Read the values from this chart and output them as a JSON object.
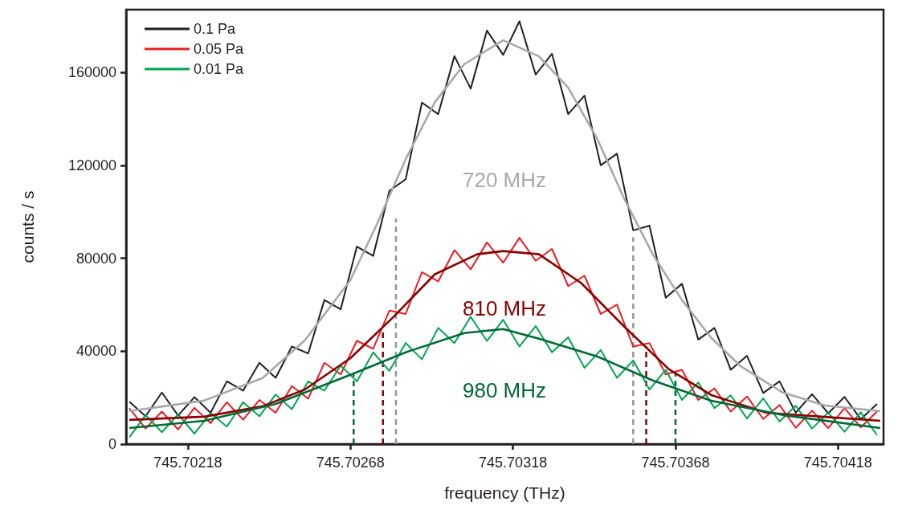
{
  "chart_data": {
    "type": "line",
    "xlabel": "frequency (THz)",
    "ylabel": "counts / s",
    "xlim": [
      745.70199,
      745.70432
    ],
    "xticks": [
      745.70218,
      745.70268,
      745.70318,
      745.70368,
      745.70418
    ],
    "ylim": [
      0,
      187000
    ],
    "yticks": [
      0,
      40000,
      80000,
      120000,
      160000
    ],
    "grid": false,
    "legend": "top left",
    "marker": "none",
    "line_style": "solid",
    "x": [
      745.702,
      745.70205,
      745.7021,
      745.70215,
      745.7022,
      745.70225,
      745.7023,
      745.70235,
      745.7024,
      745.70245,
      745.7025,
      745.70255,
      745.7026,
      745.70265,
      745.7027,
      745.70275,
      745.7028,
      745.70285,
      745.7029,
      745.70295,
      745.703,
      745.70305,
      745.7031,
      745.70315,
      745.7032,
      745.70325,
      745.7033,
      745.70335,
      745.7034,
      745.70345,
      745.7035,
      745.70355,
      745.7036,
      745.70365,
      745.7037,
      745.70375,
      745.7038,
      745.70385,
      745.7039,
      745.70395,
      745.704,
      745.70405,
      745.7041,
      745.70415,
      745.7042,
      745.70425,
      745.7043
    ],
    "series": [
      {
        "name": "0.1 Pa",
        "color": "#231f20",
        "values": [
          18200,
          12000,
          22200,
          12300,
          20200,
          13500,
          27000,
          23000,
          35000,
          28500,
          42000,
          39000,
          62000,
          58000,
          85000,
          81000,
          109000,
          114000,
          147000,
          142000,
          167000,
          153000,
          178000,
          167500,
          182000,
          159000,
          168000,
          142000,
          150000,
          120000,
          125000,
          92000,
          94000,
          63000,
          69000,
          45000,
          50000,
          32000,
          38000,
          22000,
          27000,
          13500,
          21500,
          13300,
          20300,
          10700,
          17300
        ]
      },
      {
        "name": "0.05 Pa",
        "color": "#ed1c24",
        "values": [
          15400,
          6700,
          14000,
          6300,
          15600,
          9000,
          18000,
          10500,
          19000,
          13500,
          25000,
          19500,
          35000,
          30000,
          44500,
          41000,
          57500,
          56000,
          74000,
          70000,
          83500,
          75200,
          86800,
          78100,
          88800,
          78900,
          84000,
          68000,
          72500,
          56000,
          60000,
          42000,
          43500,
          30000,
          32000,
          19000,
          24000,
          14000,
          20500,
          10800,
          16800,
          7000,
          14400,
          6900,
          15500,
          7200,
          14000
        ]
      },
      {
        "name": "0.01 Pa",
        "color": "#00a651",
        "values": [
          2900,
          12500,
          5100,
          12800,
          4500,
          13300,
          7500,
          18000,
          12000,
          21300,
          15000,
          27000,
          23000,
          33800,
          27000,
          39500,
          31500,
          43500,
          36500,
          50000,
          43500,
          54800,
          44400,
          53500,
          42000,
          50800,
          39500,
          46000,
          32800,
          40500,
          28500,
          36000,
          23500,
          32000,
          19000,
          26500,
          15500,
          21000,
          11000,
          19700,
          9700,
          16500,
          6700,
          13500,
          5300,
          13700,
          3900
        ]
      },
      {
        "color": "#a7a9ac",
        "x": [
          745.702,
          745.70223,
          745.70241,
          745.70254,
          745.70268,
          745.70276,
          745.70285,
          745.70294,
          745.70303,
          745.70315,
          745.70326,
          745.70335,
          745.70344,
          745.70352,
          745.70361,
          745.7037,
          745.70379,
          745.70388,
          745.70401,
          745.70414,
          745.70431
        ],
        "values": [
          14200,
          18700,
          28400,
          44700,
          70600,
          94200,
          122600,
          147200,
          163500,
          173800,
          166900,
          153400,
          131200,
          106300,
          81700,
          62000,
          45700,
          33600,
          22200,
          16600,
          14200
        ]
      },
      {
        "color": "#8b0000",
        "x": [
          745.702,
          745.70223,
          745.70241,
          745.70254,
          745.70268,
          745.70281,
          745.70294,
          745.70307,
          745.70315,
          745.70326,
          745.70339,
          745.70352,
          745.70366,
          745.70379,
          745.70396,
          745.70431
        ],
        "values": [
          10400,
          11800,
          16300,
          23500,
          37000,
          54400,
          73100,
          81700,
          83100,
          81700,
          69300,
          50900,
          32200,
          21100,
          13500,
          10000
        ]
      },
      {
        "color": "#006837",
        "x": [
          745.702,
          745.70223,
          745.70245,
          745.70268,
          745.70285,
          745.70303,
          745.70315,
          745.70326,
          745.70344,
          745.70361,
          745.70379,
          745.70401,
          745.70431
        ],
        "values": [
          6900,
          10000,
          17300,
          29800,
          39500,
          47800,
          49500,
          45400,
          37700,
          27400,
          18700,
          12500,
          6900
        ]
      },
      {
        "color": "#939598",
        "line_style": "dashed",
        "x": [
          745.70282,
          745.70282
        ],
        "values": [
          0,
          97000
        ]
      },
      {
        "color": "#939598",
        "line_style": "dashed",
        "x": [
          745.70355,
          745.70355
        ],
        "values": [
          0,
          89000
        ]
      },
      {
        "color": "#8b0000",
        "line_style": "dashed",
        "x": [
          745.70278,
          745.70278
        ],
        "values": [
          0,
          49500
        ]
      },
      {
        "color": "#8b0000",
        "line_style": "dashed",
        "x": [
          745.70359,
          745.70359
        ],
        "values": [
          0,
          42200
        ]
      },
      {
        "color": "#006837",
        "line_style": "dashed",
        "x": [
          745.70269,
          745.70269
        ],
        "values": [
          0,
          29800
        ]
      },
      {
        "color": "#006837",
        "line_style": "dashed",
        "x": [
          745.70368,
          745.70368
        ],
        "values": [
          0,
          30800
        ]
      }
    ],
    "annotations": [
      "720 MHz",
      "810 MHz",
      "980 MHz"
    ]
  }
}
